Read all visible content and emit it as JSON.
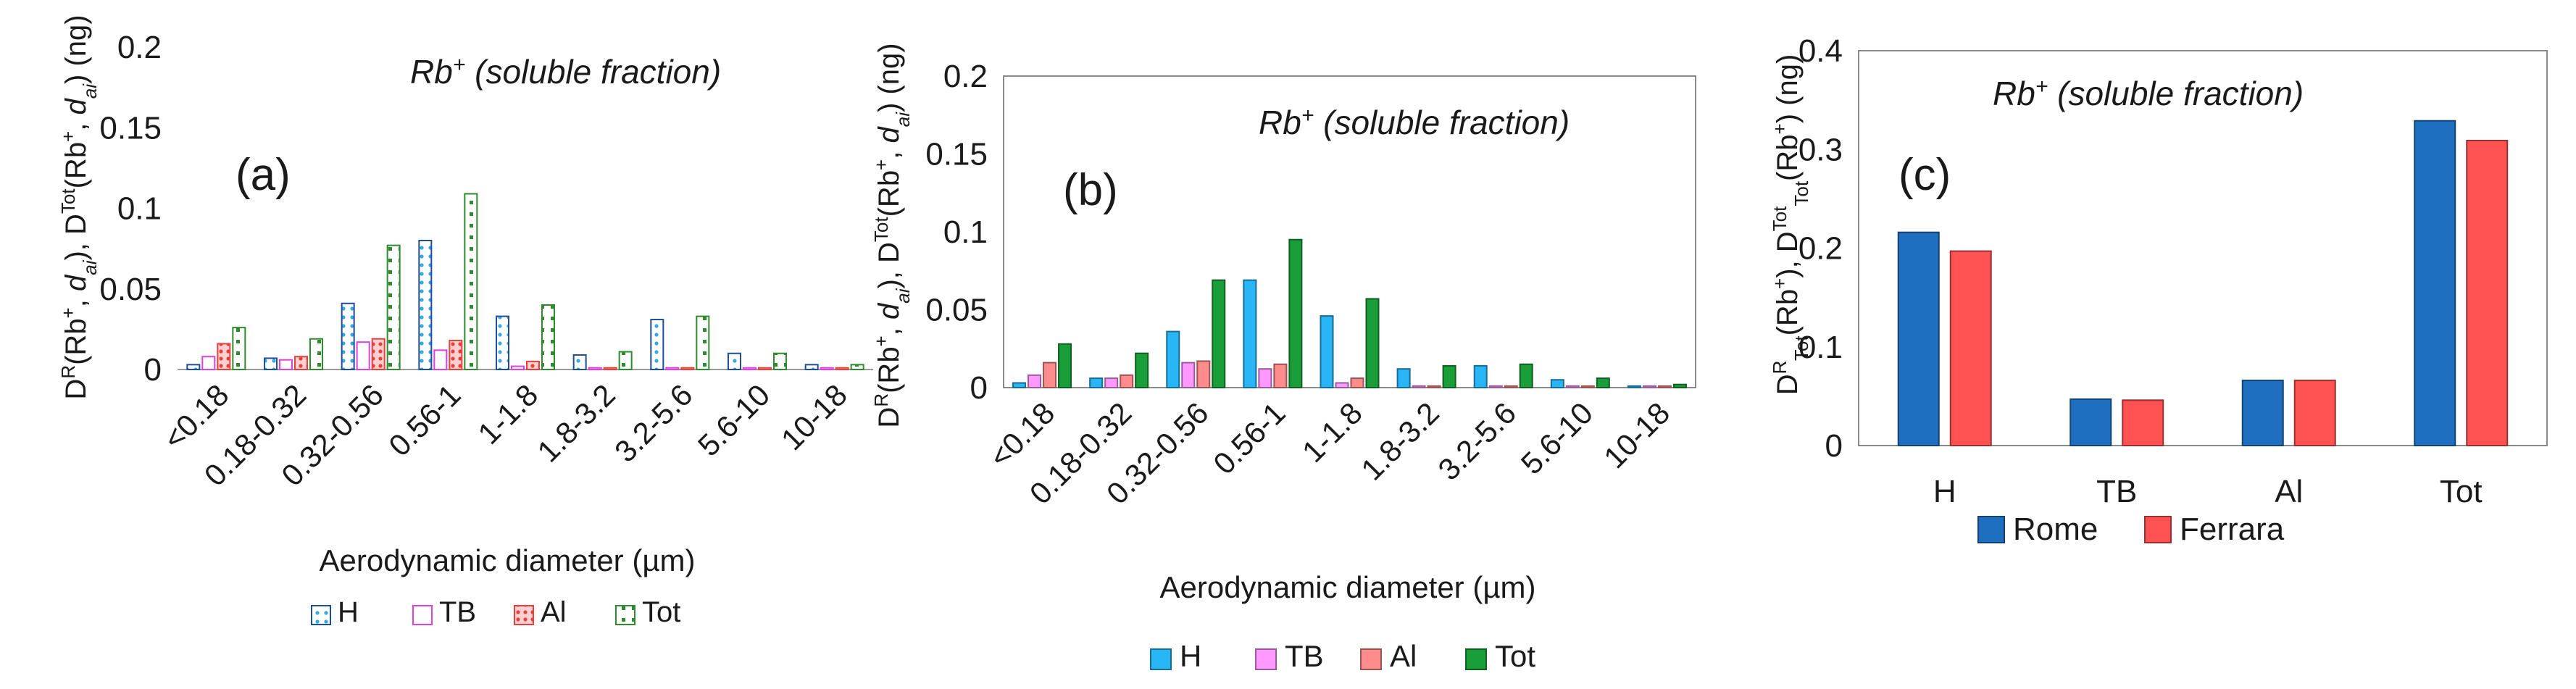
{
  "chart_data": [
    {
      "type": "bar",
      "panel_label": "(a)",
      "title": "Rb⁺ (soluble fraction)",
      "title_species": "Rb",
      "title_charge": "+",
      "title_rest": " (soluble fraction)",
      "xlabel": "Aerodynamic diameter (µm)",
      "ylabel": "Dᴿ(Rb⁺,dₐᵢ), Dᵀᵒᵗ(Rb⁺,dₐᵢ) (ng)",
      "ylim": [
        0,
        0.2
      ],
      "yticks": [
        0,
        0.05,
        0.1,
        0.15,
        0.2
      ],
      "ytick_labels": [
        "0",
        "0.05",
        "0.1",
        "0.15",
        "0.2"
      ],
      "grid": false,
      "legend_position": "bottom",
      "categories": [
        "<0.18",
        "0.18-0.32",
        "0.32-0.56",
        "0.56-1",
        "1-1.8",
        "1.8-3.2",
        "3.2-5.6",
        "5.6-10",
        "10-18"
      ],
      "series": [
        {
          "name": "H",
          "color": "#1f4e9c",
          "pattern": "dots-blue",
          "values": [
            0.003,
            0.007,
            0.041,
            0.08,
            0.033,
            0.009,
            0.031,
            0.01,
            0.003
          ]
        },
        {
          "name": "TB",
          "color": "#e040e0",
          "pattern": "solid-white",
          "values": [
            0.008,
            0.006,
            0.017,
            0.012,
            0.002,
            0.001,
            0.001,
            0.001,
            0.001
          ]
        },
        {
          "name": "Al",
          "color": "#e8403c",
          "pattern": "dots-red",
          "values": [
            0.016,
            0.008,
            0.019,
            0.018,
            0.005,
            0.001,
            0.001,
            0.001,
            0.001
          ]
        },
        {
          "name": "Tot",
          "color": "#2e8b2e",
          "pattern": "dots-green",
          "values": [
            0.026,
            0.019,
            0.077,
            0.109,
            0.04,
            0.011,
            0.033,
            0.01,
            0.003
          ]
        }
      ]
    },
    {
      "type": "bar",
      "panel_label": "(b)",
      "title": "Rb⁺ (soluble fraction)",
      "title_species": "Rb",
      "title_charge": "+",
      "title_rest": " (soluble fraction)",
      "xlabel": "Aerodynamic diameter (µm)",
      "ylabel": "Dᴿ(Rb⁺,dₐᵢ), Dᵀᵒᵗ(Rb⁺,dₐᵢ) (ng)",
      "ylim": [
        0,
        0.2
      ],
      "yticks": [
        0,
        0.05,
        0.1,
        0.15,
        0.2
      ],
      "ytick_labels": [
        "0",
        "0.05",
        "0.1",
        "0.15",
        "0.2"
      ],
      "grid": false,
      "legend_position": "bottom",
      "categories": [
        "<0.18",
        "0.18-0.32",
        "0.32-0.56",
        "0.56-1",
        "1-1.8",
        "1.8-3.2",
        "3.2-5.6",
        "5.6-10",
        "10-18"
      ],
      "series": [
        {
          "name": "H",
          "color": "#29b6f6",
          "pattern": "solid",
          "values": [
            0.003,
            0.006,
            0.036,
            0.069,
            0.046,
            0.012,
            0.014,
            0.005,
            0.001
          ]
        },
        {
          "name": "TB",
          "color": "#ff99ff",
          "pattern": "solid",
          "values": [
            0.008,
            0.006,
            0.016,
            0.012,
            0.003,
            0.001,
            0.001,
            0.001,
            0.001
          ]
        },
        {
          "name": "Al",
          "color": "#ff8c8c",
          "pattern": "solid",
          "values": [
            0.016,
            0.008,
            0.017,
            0.015,
            0.006,
            0.001,
            0.001,
            0.001,
            0.001
          ]
        },
        {
          "name": "Tot",
          "color": "#1a9e3a",
          "pattern": "solid",
          "values": [
            0.028,
            0.022,
            0.069,
            0.095,
            0.057,
            0.014,
            0.015,
            0.006,
            0.002
          ]
        }
      ]
    },
    {
      "type": "bar",
      "panel_label": "(c)",
      "title": "Rb⁺ (soluble fraction)",
      "title_species": "Rb",
      "title_charge": "+",
      "title_rest": " (soluble fraction)",
      "xlabel": "",
      "ylabel": "Dᴿₜₒₜ(Rb⁺), Dᵀᵒᵗₜₒₜ(Rb⁺) (ng)",
      "ylim": [
        0,
        0.4
      ],
      "yticks": [
        0,
        0.1,
        0.2,
        0.3,
        0.4
      ],
      "ytick_labels": [
        "0",
        "0.1",
        "0.2",
        "0.3",
        "0.4"
      ],
      "grid": false,
      "legend_position": "bottom",
      "categories": [
        "H",
        "TB",
        "Al",
        "Tot"
      ],
      "series": [
        {
          "name": "Rome",
          "color": "#1f6fc0",
          "pattern": "solid",
          "values": [
            0.216,
            0.047,
            0.066,
            0.329
          ]
        },
        {
          "name": "Ferrara",
          "color": "#ff5252",
          "pattern": "solid",
          "values": [
            0.197,
            0.046,
            0.066,
            0.309
          ]
        }
      ]
    }
  ]
}
